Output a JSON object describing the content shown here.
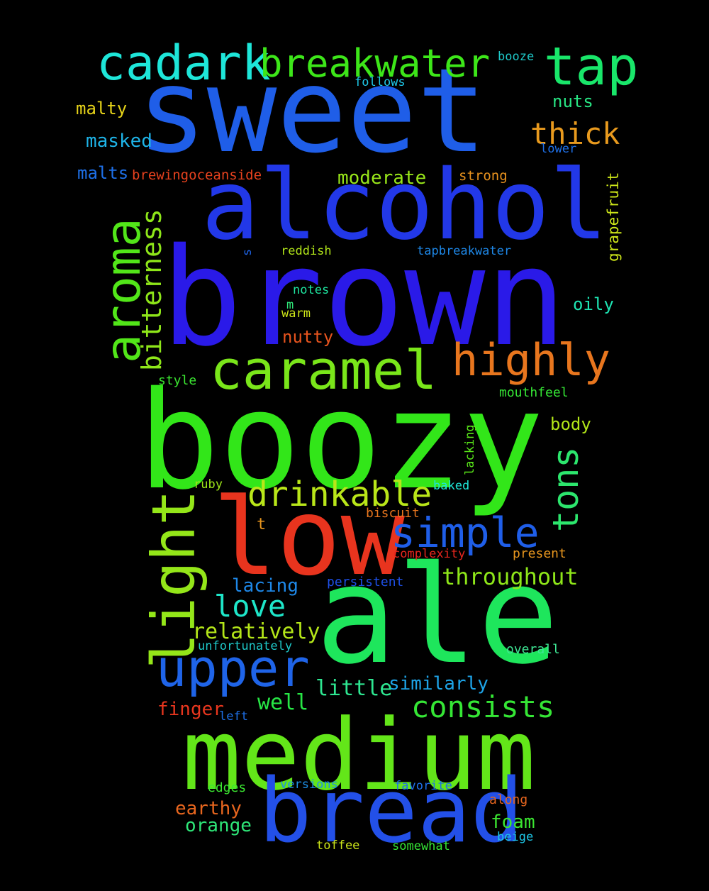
{
  "word_cloud": {
    "words": [
      {
        "text": "sweet",
        "color": "#1f5ee8",
        "rotated": false
      },
      {
        "text": "brown",
        "color": "#2a1ae8",
        "rotated": false
      },
      {
        "text": "boozy",
        "color": "#32e619",
        "rotated": false
      },
      {
        "text": "ale",
        "color": "#1ee65c",
        "rotated": false
      },
      {
        "text": "medium",
        "color": "#63e619",
        "rotated": false
      },
      {
        "text": "alcohol",
        "color": "#2238e8",
        "rotated": false
      },
      {
        "text": "bread",
        "color": "#2350e8",
        "rotated": false
      },
      {
        "text": "low",
        "color": "#e8341e",
        "rotated": false
      },
      {
        "text": "caramel",
        "color": "#7ae61a",
        "rotated": false
      },
      {
        "text": "light",
        "color": "#94e619",
        "rotated": true
      },
      {
        "text": "aroma",
        "color": "#52e619",
        "rotated": true
      },
      {
        "text": "upper",
        "color": "#1f64e8",
        "rotated": false
      },
      {
        "text": "highly",
        "color": "#e8761e",
        "rotated": false
      },
      {
        "text": "cadark",
        "color": "#1ee6d9",
        "rotated": false
      },
      {
        "text": "breakwater",
        "color": "#3de619",
        "rotated": false
      },
      {
        "text": "tap",
        "color": "#19e66a",
        "rotated": false
      },
      {
        "text": "simple",
        "color": "#1f5ee8",
        "rotated": false
      },
      {
        "text": "drinkable",
        "color": "#b9e619",
        "rotated": false
      },
      {
        "text": "tons",
        "color": "#2ce66d",
        "rotated": true
      },
      {
        "text": "bitterness",
        "color": "#8ee619",
        "rotated": true
      },
      {
        "text": "consists",
        "color": "#35e635",
        "rotated": false
      },
      {
        "text": "thick",
        "color": "#e89a1e",
        "rotated": false
      },
      {
        "text": "love",
        "color": "#1ee6c9",
        "rotated": false
      },
      {
        "text": "throughout",
        "color": "#8ee619",
        "rotated": false
      },
      {
        "text": "relatively",
        "color": "#b4e619",
        "rotated": false
      },
      {
        "text": "little",
        "color": "#2ee691",
        "rotated": false
      },
      {
        "text": "well",
        "color": "#27e645",
        "rotated": false
      },
      {
        "text": "moderate",
        "color": "#98e619",
        "rotated": false
      },
      {
        "text": "similarly",
        "color": "#1ea4e8",
        "rotated": false
      },
      {
        "text": "lacing",
        "color": "#1e88e8",
        "rotated": false
      },
      {
        "text": "finger",
        "color": "#e8361e",
        "rotated": false
      },
      {
        "text": "earthy",
        "color": "#e8661e",
        "rotated": false
      },
      {
        "text": "orange",
        "color": "#2ee678",
        "rotated": false
      },
      {
        "text": "foam",
        "color": "#3be631",
        "rotated": false
      },
      {
        "text": "malty",
        "color": "#e6d319",
        "rotated": false
      },
      {
        "text": "masked",
        "color": "#1eb4e8",
        "rotated": false
      },
      {
        "text": "malts",
        "color": "#1e70e8",
        "rotated": false
      },
      {
        "text": "nuts",
        "color": "#28e684",
        "rotated": false
      },
      {
        "text": "nutty",
        "color": "#e8541e",
        "rotated": false
      },
      {
        "text": "oily",
        "color": "#1ee6b4",
        "rotated": false
      },
      {
        "text": "body",
        "color": "#b2e619",
        "rotated": false
      },
      {
        "text": "grapefruit",
        "color": "#cde619",
        "rotated": true
      },
      {
        "text": "booze",
        "color": "#1ec8c8",
        "rotated": false
      },
      {
        "text": "follows",
        "color": "#1ec8e8",
        "rotated": false
      },
      {
        "text": "lower",
        "color": "#1e70e8",
        "rotated": false
      },
      {
        "text": "brewingoceanside",
        "color": "#e8421e",
        "rotated": false
      },
      {
        "text": "strong",
        "color": "#e8921e",
        "rotated": false
      },
      {
        "text": "reddish",
        "color": "#b2e619",
        "rotated": false
      },
      {
        "text": "tapbreakwater",
        "color": "#1e88e8",
        "rotated": false
      },
      {
        "text": "s",
        "color": "#1e64e8",
        "rotated": true
      },
      {
        "text": "notes",
        "color": "#1ee6a0",
        "rotated": false
      },
      {
        "text": "m",
        "color": "#2ee678",
        "rotated": false
      },
      {
        "text": "warm",
        "color": "#cde619",
        "rotated": false
      },
      {
        "text": "style",
        "color": "#3be631",
        "rotated": false
      },
      {
        "text": "mouthfeel",
        "color": "#35e635",
        "rotated": false
      },
      {
        "text": "lacking",
        "color": "#58e619",
        "rotated": true
      },
      {
        "text": "ruby",
        "color": "#9ee619",
        "rotated": false
      },
      {
        "text": "baked",
        "color": "#1ee6d9",
        "rotated": false
      },
      {
        "text": "biscuit",
        "color": "#e8761e",
        "rotated": false
      },
      {
        "text": "t",
        "color": "#e8961e",
        "rotated": false
      },
      {
        "text": "complexity",
        "color": "#e8261e",
        "rotated": false
      },
      {
        "text": "present",
        "color": "#e8961e",
        "rotated": false
      },
      {
        "text": "persistent",
        "color": "#1e50e8",
        "rotated": false
      },
      {
        "text": "unfortunately",
        "color": "#1ec8c8",
        "rotated": false
      },
      {
        "text": "overall",
        "color": "#3ee694",
        "rotated": false
      },
      {
        "text": "left",
        "color": "#1e70e8",
        "rotated": false
      },
      {
        "text": "edges",
        "color": "#3be631",
        "rotated": false
      },
      {
        "text": "versions",
        "color": "#1e90e8",
        "rotated": false
      },
      {
        "text": "favorite",
        "color": "#1e70e8",
        "rotated": false
      },
      {
        "text": "along",
        "color": "#e8661e",
        "rotated": false
      },
      {
        "text": "beige",
        "color": "#1ec8e8",
        "rotated": false
      },
      {
        "text": "toffee",
        "color": "#cde619",
        "rotated": false
      },
      {
        "text": "somewhat",
        "color": "#35e635",
        "rotated": false
      }
    ]
  }
}
